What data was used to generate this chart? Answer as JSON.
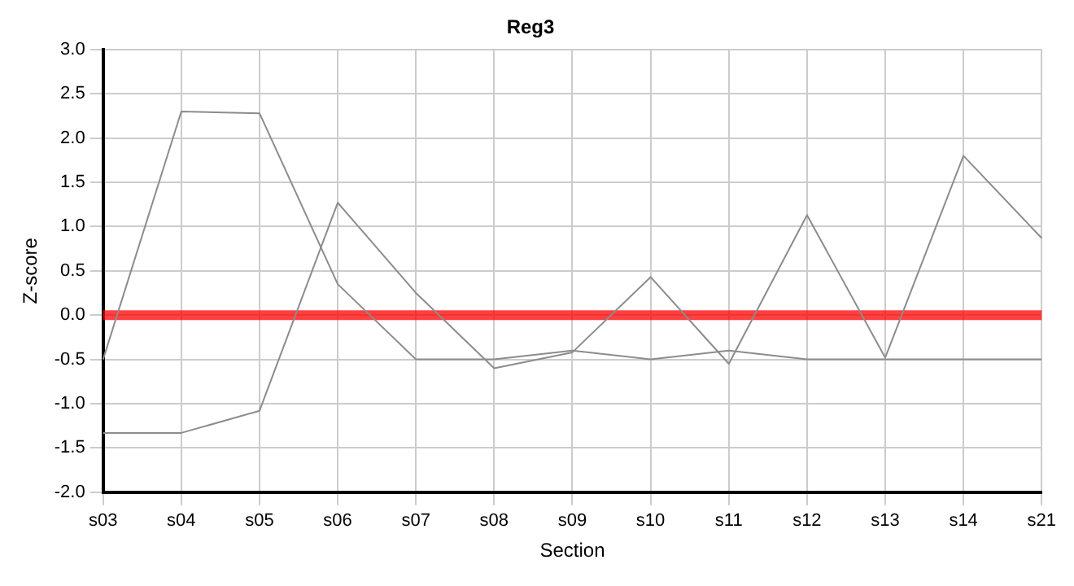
{
  "chart_data": {
    "type": "line",
    "title": "Reg3",
    "xlabel": "Section",
    "ylabel": "Z-score",
    "categories": [
      "s03",
      "s04",
      "s05",
      "s06",
      "s07",
      "s08",
      "s09",
      "s10",
      "s11",
      "s12",
      "s13",
      "s14",
      "s21"
    ],
    "series": [
      {
        "color": "#8c8c8c",
        "values": [
          -0.5,
          2.3,
          2.28,
          0.35,
          -0.5,
          -0.5,
          -0.4,
          -0.5,
          -0.4,
          -0.5,
          -0.5,
          -0.5,
          -0.5
        ]
      },
      {
        "color": "#8c8c8c",
        "values": [
          -1.33,
          -1.33,
          -1.08,
          1.27,
          0.25,
          -0.6,
          -0.42,
          0.43,
          -0.55,
          1.13,
          -0.48,
          1.8,
          0.87
        ]
      }
    ],
    "ylim": [
      -2,
      3
    ],
    "yticks": [
      {
        "value": -2,
        "label": "-2.0"
      },
      {
        "value": -1.5,
        "label": "-1.5"
      },
      {
        "value": -1,
        "label": "-1.0"
      },
      {
        "value": -0.5,
        "label": "-0.5"
      },
      {
        "value": 0,
        "label": "0.0"
      },
      {
        "value": 0.5,
        "label": "0.5"
      },
      {
        "value": 1,
        "label": "1.0"
      },
      {
        "value": 1.5,
        "label": "1.5"
      },
      {
        "value": 2,
        "label": "2.0"
      },
      {
        "value": 2.5,
        "label": "2.5"
      },
      {
        "value": 3,
        "label": "3.0"
      }
    ],
    "ref_lines": [
      {
        "axis": "y",
        "value": 0,
        "color": "#ff0000"
      }
    ],
    "grid": true,
    "marker": "none",
    "line_style": "solid"
  }
}
